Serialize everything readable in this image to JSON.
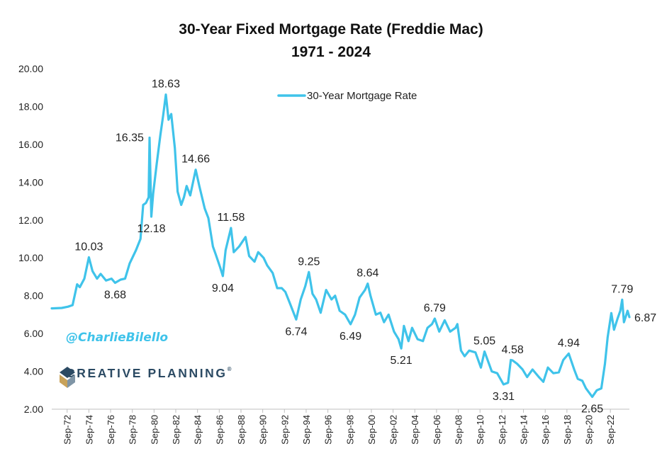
{
  "chart_data": {
    "type": "line",
    "title": "30-Year Fixed Mortgage Rate (Freddie Mac)",
    "subtitle": "1971 - 2024",
    "xlabel": "",
    "ylabel": "",
    "ylim": [
      2,
      20
    ],
    "xlim": [
      "1971-04",
      "2024-06"
    ],
    "grid": false,
    "legend_position": "top-center",
    "y_ticks": [
      "2.00",
      "4.00",
      "6.00",
      "8.00",
      "10.00",
      "12.00",
      "14.00",
      "16.00",
      "18.00",
      "20.00"
    ],
    "x_ticks": [
      {
        "label": "Sep-72",
        "date": "1972-09"
      },
      {
        "label": "Sep-74",
        "date": "1974-09"
      },
      {
        "label": "Sep-76",
        "date": "1976-09"
      },
      {
        "label": "Sep-78",
        "date": "1978-09"
      },
      {
        "label": "Sep-80",
        "date": "1980-09"
      },
      {
        "label": "Sep-82",
        "date": "1982-09"
      },
      {
        "label": "Sep-84",
        "date": "1984-09"
      },
      {
        "label": "Sep-86",
        "date": "1986-09"
      },
      {
        "label": "Sep-88",
        "date": "1988-09"
      },
      {
        "label": "Sep-90",
        "date": "1990-09"
      },
      {
        "label": "Sep-92",
        "date": "1992-09"
      },
      {
        "label": "Sep-94",
        "date": "1994-09"
      },
      {
        "label": "Sep-96",
        "date": "1996-09"
      },
      {
        "label": "Sep-98",
        "date": "1998-09"
      },
      {
        "label": "Sep-00",
        "date": "2000-09"
      },
      {
        "label": "Sep-02",
        "date": "2002-09"
      },
      {
        "label": "Sep-04",
        "date": "2004-09"
      },
      {
        "label": "Sep-06",
        "date": "2006-09"
      },
      {
        "label": "Sep-08",
        "date": "2008-09"
      },
      {
        "label": "Sep-10",
        "date": "2010-09"
      },
      {
        "label": "Sep-12",
        "date": "2012-09"
      },
      {
        "label": "Sep-14",
        "date": "2014-09"
      },
      {
        "label": "Sep-16",
        "date": "2016-09"
      },
      {
        "label": "Sep-18",
        "date": "2018-09"
      },
      {
        "label": "Sep-20",
        "date": "2020-09"
      },
      {
        "label": "Sep-22",
        "date": "2022-09"
      }
    ],
    "series": [
      {
        "name": "30-Year Mortgage Rate",
        "color": "#3fc3ea",
        "points": [
          [
            "1971-04",
            7.33
          ],
          [
            "1972-03",
            7.35
          ],
          [
            "1972-10",
            7.42
          ],
          [
            "1973-03",
            7.5
          ],
          [
            "1973-08",
            8.6
          ],
          [
            "1973-11",
            8.45
          ],
          [
            "1974-04",
            8.9
          ],
          [
            "1974-09",
            10.03
          ],
          [
            "1975-01",
            9.3
          ],
          [
            "1975-06",
            8.9
          ],
          [
            "1975-10",
            9.15
          ],
          [
            "1976-04",
            8.8
          ],
          [
            "1976-10",
            8.9
          ],
          [
            "1977-02",
            8.68
          ],
          [
            "1977-08",
            8.85
          ],
          [
            "1978-01",
            8.9
          ],
          [
            "1978-06",
            9.7
          ],
          [
            "1979-01",
            10.4
          ],
          [
            "1979-06",
            11.0
          ],
          [
            "1979-09",
            12.8
          ],
          [
            "1979-12",
            12.9
          ],
          [
            "1980-03",
            13.2
          ],
          [
            "1980-04",
            16.35
          ],
          [
            "1980-06",
            12.18
          ],
          [
            "1980-08",
            13.4
          ],
          [
            "1980-12",
            15.0
          ],
          [
            "1981-04",
            16.5
          ],
          [
            "1981-07",
            17.5
          ],
          [
            "1981-10",
            18.63
          ],
          [
            "1982-01",
            17.3
          ],
          [
            "1982-04",
            17.6
          ],
          [
            "1982-08",
            15.8
          ],
          [
            "1982-11",
            13.5
          ],
          [
            "1983-03",
            12.8
          ],
          [
            "1983-06",
            13.2
          ],
          [
            "1983-09",
            13.8
          ],
          [
            "1984-01",
            13.3
          ],
          [
            "1984-07",
            14.66
          ],
          [
            "1984-11",
            13.8
          ],
          [
            "1985-05",
            12.6
          ],
          [
            "1985-09",
            12.1
          ],
          [
            "1986-02",
            10.6
          ],
          [
            "1986-05",
            10.2
          ],
          [
            "1986-10",
            9.5
          ],
          [
            "1987-01",
            9.04
          ],
          [
            "1987-04",
            10.4
          ],
          [
            "1987-10",
            11.58
          ],
          [
            "1988-01",
            10.3
          ],
          [
            "1988-07",
            10.6
          ],
          [
            "1989-02",
            11.1
          ],
          [
            "1989-06",
            10.1
          ],
          [
            "1989-12",
            9.8
          ],
          [
            "1990-04",
            10.3
          ],
          [
            "1990-10",
            10.0
          ],
          [
            "1991-02",
            9.6
          ],
          [
            "1991-08",
            9.2
          ],
          [
            "1992-01",
            8.4
          ],
          [
            "1992-06",
            8.4
          ],
          [
            "1992-10",
            8.2
          ],
          [
            "1993-03",
            7.6
          ],
          [
            "1993-10",
            6.74
          ],
          [
            "1994-03",
            7.8
          ],
          [
            "1994-08",
            8.5
          ],
          [
            "1994-12",
            9.25
          ],
          [
            "1995-04",
            8.1
          ],
          [
            "1995-08",
            7.8
          ],
          [
            "1996-01",
            7.1
          ],
          [
            "1996-07",
            8.3
          ],
          [
            "1997-01",
            7.8
          ],
          [
            "1997-05",
            8.0
          ],
          [
            "1997-10",
            7.2
          ],
          [
            "1998-04",
            7.0
          ],
          [
            "1998-10",
            6.49
          ],
          [
            "1999-03",
            7.0
          ],
          [
            "1999-08",
            7.9
          ],
          [
            "2000-02",
            8.3
          ],
          [
            "2000-05",
            8.64
          ],
          [
            "2000-08",
            8.0
          ],
          [
            "2001-02",
            7.0
          ],
          [
            "2001-07",
            7.1
          ],
          [
            "2001-11",
            6.6
          ],
          [
            "2002-04",
            7.0
          ],
          [
            "2002-10",
            6.1
          ],
          [
            "2003-03",
            5.7
          ],
          [
            "2003-06",
            5.21
          ],
          [
            "2003-09",
            6.4
          ],
          [
            "2004-02",
            5.6
          ],
          [
            "2004-06",
            6.3
          ],
          [
            "2004-12",
            5.7
          ],
          [
            "2005-06",
            5.6
          ],
          [
            "2005-11",
            6.3
          ],
          [
            "2006-04",
            6.5
          ],
          [
            "2006-07",
            6.79
          ],
          [
            "2006-12",
            6.1
          ],
          [
            "2007-06",
            6.7
          ],
          [
            "2007-12",
            6.1
          ],
          [
            "2008-06",
            6.3
          ],
          [
            "2008-08",
            6.5
          ],
          [
            "2008-12",
            5.1
          ],
          [
            "2009-04",
            4.8
          ],
          [
            "2009-09",
            5.1
          ],
          [
            "2010-04",
            5.0
          ],
          [
            "2010-10",
            4.2
          ],
          [
            "2011-02",
            5.05
          ],
          [
            "2011-10",
            4.0
          ],
          [
            "2012-04",
            3.9
          ],
          [
            "2012-11",
            3.31
          ],
          [
            "2013-04",
            3.4
          ],
          [
            "2013-07",
            4.6
          ],
          [
            "2013-09",
            4.58
          ],
          [
            "2014-02",
            4.4
          ],
          [
            "2014-08",
            4.1
          ],
          [
            "2015-01",
            3.7
          ],
          [
            "2015-07",
            4.1
          ],
          [
            "2016-02",
            3.7
          ],
          [
            "2016-07",
            3.45
          ],
          [
            "2016-12",
            4.2
          ],
          [
            "2017-06",
            3.9
          ],
          [
            "2017-12",
            3.95
          ],
          [
            "2018-05",
            4.6
          ],
          [
            "2018-11",
            4.94
          ],
          [
            "2019-05",
            4.1
          ],
          [
            "2019-09",
            3.6
          ],
          [
            "2020-02",
            3.5
          ],
          [
            "2020-06",
            3.1
          ],
          [
            "2021-01",
            2.65
          ],
          [
            "2021-06",
            3.0
          ],
          [
            "2021-11",
            3.1
          ],
          [
            "2022-03",
            4.4
          ],
          [
            "2022-06",
            5.8
          ],
          [
            "2022-10",
            7.08
          ],
          [
            "2023-01",
            6.2
          ],
          [
            "2023-05",
            6.8
          ],
          [
            "2023-08",
            7.2
          ],
          [
            "2023-10",
            7.79
          ],
          [
            "2023-12",
            6.6
          ],
          [
            "2024-02",
            6.9
          ],
          [
            "2024-04",
            7.2
          ],
          [
            "2024-06",
            6.87
          ]
        ]
      }
    ],
    "annotations": [
      {
        "text": "10.03",
        "date": "1974-09",
        "value": 10.03,
        "pos": "above"
      },
      {
        "text": "8.68",
        "date": "1977-02",
        "value": 8.68,
        "pos": "below"
      },
      {
        "text": "16.35",
        "date": "1980-04",
        "value": 16.35,
        "pos": "left"
      },
      {
        "text": "12.18",
        "date": "1980-06",
        "value": 12.18,
        "pos": "below"
      },
      {
        "text": "18.63",
        "date": "1981-10",
        "value": 18.63,
        "pos": "above"
      },
      {
        "text": "14.66",
        "date": "1984-07",
        "value": 14.66,
        "pos": "above"
      },
      {
        "text": "9.04",
        "date": "1987-01",
        "value": 9.04,
        "pos": "below"
      },
      {
        "text": "11.58",
        "date": "1987-10",
        "value": 11.58,
        "pos": "above"
      },
      {
        "text": "6.74",
        "date": "1993-10",
        "value": 6.74,
        "pos": "below"
      },
      {
        "text": "9.25",
        "date": "1994-12",
        "value": 9.25,
        "pos": "above"
      },
      {
        "text": "6.49",
        "date": "1998-10",
        "value": 6.49,
        "pos": "below"
      },
      {
        "text": "8.64",
        "date": "2000-05",
        "value": 8.64,
        "pos": "above"
      },
      {
        "text": "5.21",
        "date": "2003-06",
        "value": 5.21,
        "pos": "below"
      },
      {
        "text": "6.79",
        "date": "2006-07",
        "value": 6.79,
        "pos": "above"
      },
      {
        "text": "5.05",
        "date": "2011-02",
        "value": 5.05,
        "pos": "above"
      },
      {
        "text": "3.31",
        "date": "2012-11",
        "value": 3.31,
        "pos": "below"
      },
      {
        "text": "4.58",
        "date": "2013-09",
        "value": 4.58,
        "pos": "above"
      },
      {
        "text": "4.94",
        "date": "2018-11",
        "value": 4.94,
        "pos": "above"
      },
      {
        "text": "2.65",
        "date": "2021-01",
        "value": 2.65,
        "pos": "below"
      },
      {
        "text": "7.79",
        "date": "2023-10",
        "value": 7.79,
        "pos": "above"
      },
      {
        "text": "6.87",
        "date": "2024-06",
        "value": 6.87,
        "pos": "right"
      }
    ]
  },
  "watermark": {
    "handle": "@CharlieBilello"
  },
  "branding": {
    "text": "CREATIVE PLANNING",
    "registered": "®",
    "logo_icon": "creative-planning-logo-icon"
  }
}
